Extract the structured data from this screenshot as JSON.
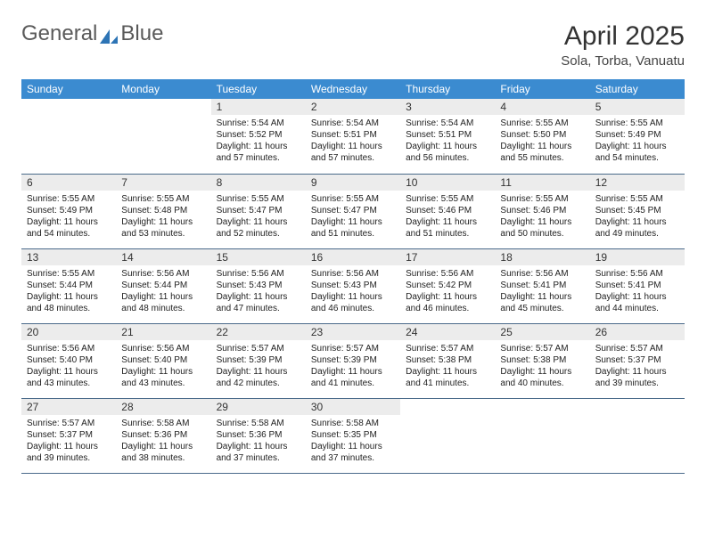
{
  "brand": {
    "part1": "General",
    "part2": "Blue"
  },
  "title": "April 2025",
  "subtitle": "Sola, Torba, Vanuatu",
  "colors": {
    "header_bg": "#3b8bd0",
    "header_text": "#ffffff",
    "daynum_bg": "#ececec",
    "cell_border": "#4a6a8a",
    "logo_accent": "#2d74b5"
  },
  "weekdays": [
    "Sunday",
    "Monday",
    "Tuesday",
    "Wednesday",
    "Thursday",
    "Friday",
    "Saturday"
  ],
  "weeks": [
    [
      {
        "n": "",
        "sr": "",
        "ss": "",
        "dl": ""
      },
      {
        "n": "",
        "sr": "",
        "ss": "",
        "dl": ""
      },
      {
        "n": "1",
        "sr": "Sunrise: 5:54 AM",
        "ss": "Sunset: 5:52 PM",
        "dl": "Daylight: 11 hours and 57 minutes."
      },
      {
        "n": "2",
        "sr": "Sunrise: 5:54 AM",
        "ss": "Sunset: 5:51 PM",
        "dl": "Daylight: 11 hours and 57 minutes."
      },
      {
        "n": "3",
        "sr": "Sunrise: 5:54 AM",
        "ss": "Sunset: 5:51 PM",
        "dl": "Daylight: 11 hours and 56 minutes."
      },
      {
        "n": "4",
        "sr": "Sunrise: 5:55 AM",
        "ss": "Sunset: 5:50 PM",
        "dl": "Daylight: 11 hours and 55 minutes."
      },
      {
        "n": "5",
        "sr": "Sunrise: 5:55 AM",
        "ss": "Sunset: 5:49 PM",
        "dl": "Daylight: 11 hours and 54 minutes."
      }
    ],
    [
      {
        "n": "6",
        "sr": "Sunrise: 5:55 AM",
        "ss": "Sunset: 5:49 PM",
        "dl": "Daylight: 11 hours and 54 minutes."
      },
      {
        "n": "7",
        "sr": "Sunrise: 5:55 AM",
        "ss": "Sunset: 5:48 PM",
        "dl": "Daylight: 11 hours and 53 minutes."
      },
      {
        "n": "8",
        "sr": "Sunrise: 5:55 AM",
        "ss": "Sunset: 5:47 PM",
        "dl": "Daylight: 11 hours and 52 minutes."
      },
      {
        "n": "9",
        "sr": "Sunrise: 5:55 AM",
        "ss": "Sunset: 5:47 PM",
        "dl": "Daylight: 11 hours and 51 minutes."
      },
      {
        "n": "10",
        "sr": "Sunrise: 5:55 AM",
        "ss": "Sunset: 5:46 PM",
        "dl": "Daylight: 11 hours and 51 minutes."
      },
      {
        "n": "11",
        "sr": "Sunrise: 5:55 AM",
        "ss": "Sunset: 5:46 PM",
        "dl": "Daylight: 11 hours and 50 minutes."
      },
      {
        "n": "12",
        "sr": "Sunrise: 5:55 AM",
        "ss": "Sunset: 5:45 PM",
        "dl": "Daylight: 11 hours and 49 minutes."
      }
    ],
    [
      {
        "n": "13",
        "sr": "Sunrise: 5:55 AM",
        "ss": "Sunset: 5:44 PM",
        "dl": "Daylight: 11 hours and 48 minutes."
      },
      {
        "n": "14",
        "sr": "Sunrise: 5:56 AM",
        "ss": "Sunset: 5:44 PM",
        "dl": "Daylight: 11 hours and 48 minutes."
      },
      {
        "n": "15",
        "sr": "Sunrise: 5:56 AM",
        "ss": "Sunset: 5:43 PM",
        "dl": "Daylight: 11 hours and 47 minutes."
      },
      {
        "n": "16",
        "sr": "Sunrise: 5:56 AM",
        "ss": "Sunset: 5:43 PM",
        "dl": "Daylight: 11 hours and 46 minutes."
      },
      {
        "n": "17",
        "sr": "Sunrise: 5:56 AM",
        "ss": "Sunset: 5:42 PM",
        "dl": "Daylight: 11 hours and 46 minutes."
      },
      {
        "n": "18",
        "sr": "Sunrise: 5:56 AM",
        "ss": "Sunset: 5:41 PM",
        "dl": "Daylight: 11 hours and 45 minutes."
      },
      {
        "n": "19",
        "sr": "Sunrise: 5:56 AM",
        "ss": "Sunset: 5:41 PM",
        "dl": "Daylight: 11 hours and 44 minutes."
      }
    ],
    [
      {
        "n": "20",
        "sr": "Sunrise: 5:56 AM",
        "ss": "Sunset: 5:40 PM",
        "dl": "Daylight: 11 hours and 43 minutes."
      },
      {
        "n": "21",
        "sr": "Sunrise: 5:56 AM",
        "ss": "Sunset: 5:40 PM",
        "dl": "Daylight: 11 hours and 43 minutes."
      },
      {
        "n": "22",
        "sr": "Sunrise: 5:57 AM",
        "ss": "Sunset: 5:39 PM",
        "dl": "Daylight: 11 hours and 42 minutes."
      },
      {
        "n": "23",
        "sr": "Sunrise: 5:57 AM",
        "ss": "Sunset: 5:39 PM",
        "dl": "Daylight: 11 hours and 41 minutes."
      },
      {
        "n": "24",
        "sr": "Sunrise: 5:57 AM",
        "ss": "Sunset: 5:38 PM",
        "dl": "Daylight: 11 hours and 41 minutes."
      },
      {
        "n": "25",
        "sr": "Sunrise: 5:57 AM",
        "ss": "Sunset: 5:38 PM",
        "dl": "Daylight: 11 hours and 40 minutes."
      },
      {
        "n": "26",
        "sr": "Sunrise: 5:57 AM",
        "ss": "Sunset: 5:37 PM",
        "dl": "Daylight: 11 hours and 39 minutes."
      }
    ],
    [
      {
        "n": "27",
        "sr": "Sunrise: 5:57 AM",
        "ss": "Sunset: 5:37 PM",
        "dl": "Daylight: 11 hours and 39 minutes."
      },
      {
        "n": "28",
        "sr": "Sunrise: 5:58 AM",
        "ss": "Sunset: 5:36 PM",
        "dl": "Daylight: 11 hours and 38 minutes."
      },
      {
        "n": "29",
        "sr": "Sunrise: 5:58 AM",
        "ss": "Sunset: 5:36 PM",
        "dl": "Daylight: 11 hours and 37 minutes."
      },
      {
        "n": "30",
        "sr": "Sunrise: 5:58 AM",
        "ss": "Sunset: 5:35 PM",
        "dl": "Daylight: 11 hours and 37 minutes."
      },
      {
        "n": "",
        "sr": "",
        "ss": "",
        "dl": ""
      },
      {
        "n": "",
        "sr": "",
        "ss": "",
        "dl": ""
      },
      {
        "n": "",
        "sr": "",
        "ss": "",
        "dl": ""
      }
    ]
  ]
}
